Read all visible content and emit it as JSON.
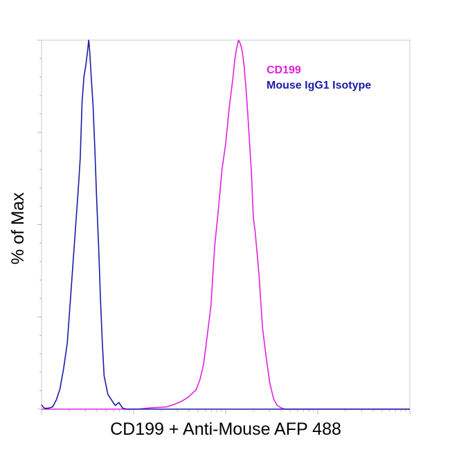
{
  "chart_data": {
    "type": "line",
    "xlabel": "CD199 + Anti-Mouse AFP 488",
    "ylabel": "% of Max",
    "x_scale": "log",
    "x_tick_labels": [],
    "y_tick_labels": [],
    "ylim": [
      0,
      100
    ],
    "grid": false,
    "legend_position": "top-right",
    "series": [
      {
        "name": "CD199",
        "color": "#e020e0",
        "points": [
          [
            0.0,
            0.0
          ],
          [
            0.26,
            0.0
          ],
          [
            0.3,
            0.4
          ],
          [
            0.34,
            0.6
          ],
          [
            0.36,
            1.3
          ],
          [
            0.38,
            2.1
          ],
          [
            0.4,
            3.4
          ],
          [
            0.42,
            5.3
          ],
          [
            0.43,
            8.0
          ],
          [
            0.44,
            12.2
          ],
          [
            0.45,
            20.0
          ],
          [
            0.46,
            28.0
          ],
          [
            0.47,
            44.0
          ],
          [
            0.48,
            54.0
          ],
          [
            0.49,
            65.0
          ],
          [
            0.5,
            72.0
          ],
          [
            0.51,
            82.0
          ],
          [
            0.52,
            90.0
          ],
          [
            0.525,
            95.0
          ],
          [
            0.53,
            98.0
          ],
          [
            0.535,
            100.0
          ],
          [
            0.54,
            99.0
          ],
          [
            0.545,
            97.0
          ],
          [
            0.55,
            93.0
          ],
          [
            0.555,
            87.0
          ],
          [
            0.56,
            80.0
          ],
          [
            0.57,
            64.0
          ],
          [
            0.575,
            52.0
          ],
          [
            0.58,
            48.0
          ],
          [
            0.59,
            37.0
          ],
          [
            0.6,
            22.0
          ],
          [
            0.61,
            14.0
          ],
          [
            0.62,
            7.0
          ],
          [
            0.63,
            2.8
          ],
          [
            0.64,
            1.0
          ],
          [
            0.65,
            0.4
          ],
          [
            0.66,
            0.0
          ],
          [
            1.0,
            0.0
          ]
        ]
      },
      {
        "name": "Mouse IgG1 Isotype",
        "color": "#1a1aaa",
        "points": [
          [
            0.0,
            1.2
          ],
          [
            0.005,
            0.5
          ],
          [
            0.01,
            0.2
          ],
          [
            0.02,
            0.3
          ],
          [
            0.03,
            0.6
          ],
          [
            0.04,
            2.5
          ],
          [
            0.05,
            5.5
          ],
          [
            0.06,
            11.0
          ],
          [
            0.07,
            18.0
          ],
          [
            0.08,
            32.0
          ],
          [
            0.09,
            46.0
          ],
          [
            0.1,
            60.0
          ],
          [
            0.105,
            68.0
          ],
          [
            0.11,
            83.0
          ],
          [
            0.115,
            90.0
          ],
          [
            0.12,
            93.0
          ],
          [
            0.125,
            97.0
          ],
          [
            0.128,
            100.0
          ],
          [
            0.13,
            98.0
          ],
          [
            0.135,
            90.0
          ],
          [
            0.14,
            82.0
          ],
          [
            0.145,
            70.0
          ],
          [
            0.15,
            56.0
          ],
          [
            0.155,
            44.0
          ],
          [
            0.16,
            30.0
          ],
          [
            0.165,
            18.0
          ],
          [
            0.17,
            9.0
          ],
          [
            0.18,
            4.0
          ],
          [
            0.19,
            2.5
          ],
          [
            0.2,
            1.0
          ],
          [
            0.21,
            1.8
          ],
          [
            0.22,
            0.3
          ],
          [
            0.23,
            0.0
          ],
          [
            1.0,
            0.0
          ]
        ]
      }
    ]
  }
}
